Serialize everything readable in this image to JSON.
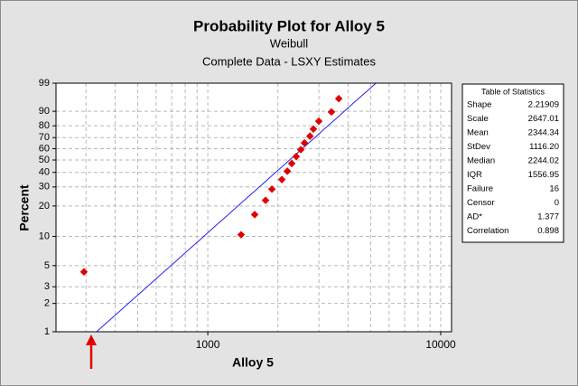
{
  "chart_data": {
    "type": "probability",
    "title": "Probability Plot for Alloy 5",
    "subtitle": "Weibull",
    "subtitle2": "Complete Data - LSXY Estimates",
    "x_label": "Alloy 5",
    "y_label": "Percent",
    "x_scale": "log",
    "y_scale": "weibull",
    "grid": true,
    "xlim": [
      223,
      11130
    ],
    "xticks": [
      1000,
      10000
    ],
    "ylim": [
      1,
      99
    ],
    "yticks": [
      1,
      2,
      3,
      5,
      10,
      20,
      30,
      40,
      50,
      60,
      70,
      80,
      90,
      99
    ],
    "series": [
      {
        "color": "#e00000",
        "x": [
          294,
          1390,
          1590,
          1770,
          1885,
          2080,
          2195,
          2293,
          2397,
          2507,
          2600,
          2745,
          2840,
          2995,
          3395,
          3650
        ],
        "values": [
          4.3,
          10.4,
          16.5,
          22.6,
          28.7,
          34.8,
          40.9,
          47.0,
          53.0,
          59.1,
          65.2,
          71.3,
          77.4,
          83.5,
          89.6,
          95.7
        ]
      }
    ],
    "fit_color": "#2020ff",
    "stats_table": {
      "title": "Table of Statistics",
      "rows": [
        [
          "Shape",
          "2.21909"
        ],
        [
          "Scale",
          "2647.01"
        ],
        [
          "Mean",
          "2344.34"
        ],
        [
          "StDev",
          "1116.20"
        ],
        [
          "Median",
          "2244.02"
        ],
        [
          "IQR",
          "1556.95"
        ],
        [
          "Failure",
          "16"
        ],
        [
          "Censor",
          "0"
        ],
        [
          "AD*",
          "1.377"
        ],
        [
          "Correlation",
          "0.898"
        ]
      ]
    }
  }
}
